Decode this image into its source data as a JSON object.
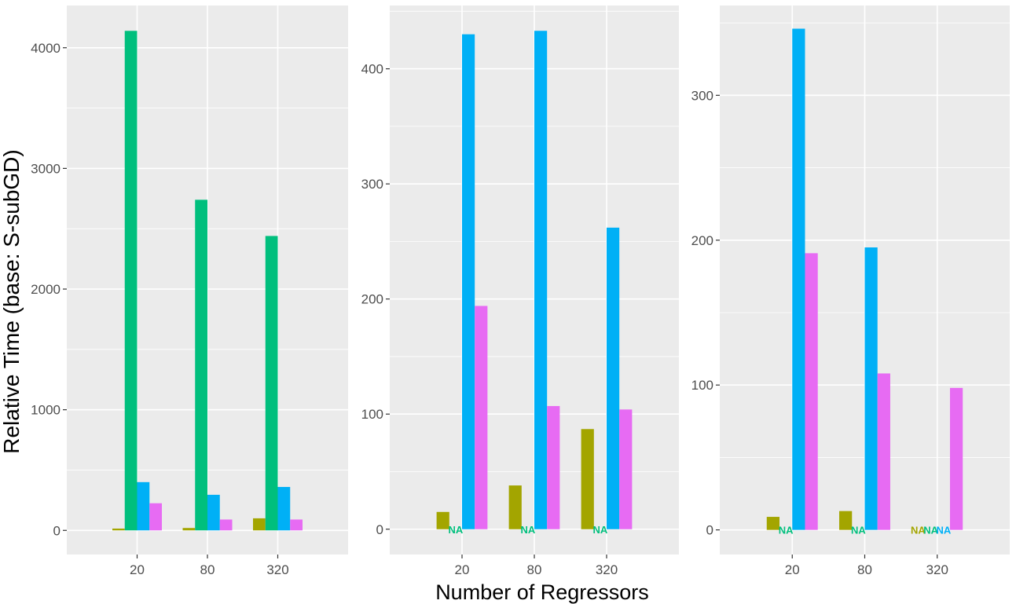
{
  "figure": {
    "ylabel": "Relative Time (base: S-subGD)",
    "xlabel": "Number of Regressors",
    "na_label": "NA"
  },
  "colors": {
    "series": [
      "#A3A500",
      "#00BF7D",
      "#00B0F6",
      "#E76BF3"
    ],
    "panel_bg": "#EBEBEB",
    "grid": "#FFFFFF",
    "tick_text": "#4D4D4D",
    "tick_mark": "#333333",
    "title_text": "#000000"
  },
  "chart_data": [
    {
      "type": "bar",
      "categories": [
        "20",
        "80",
        "320"
      ],
      "ylim": [
        -200,
        4350
      ],
      "yticks": [
        0,
        1000,
        2000,
        3000,
        4000
      ],
      "series": [
        {
          "values": [
            15,
            20,
            100
          ]
        },
        {
          "values": [
            4140,
            2740,
            2440
          ]
        },
        {
          "values": [
            400,
            295,
            360
          ]
        },
        {
          "values": [
            225,
            90,
            90
          ]
        }
      ]
    },
    {
      "type": "bar",
      "categories": [
        "20",
        "80",
        "320"
      ],
      "ylim": [
        -22,
        455
      ],
      "yticks": [
        0,
        100,
        200,
        300,
        400
      ],
      "series": [
        {
          "values": [
            15,
            38,
            87
          ]
        },
        {
          "values": [
            null,
            null,
            null
          ]
        },
        {
          "values": [
            430,
            433,
            262
          ]
        },
        {
          "values": [
            194,
            107,
            104
          ]
        }
      ]
    },
    {
      "type": "bar",
      "categories": [
        "20",
        "80",
        "320"
      ],
      "ylim": [
        -17,
        362
      ],
      "yticks": [
        0,
        100,
        200,
        300
      ],
      "series": [
        {
          "values": [
            9,
            13,
            null
          ]
        },
        {
          "values": [
            null,
            null,
            null
          ]
        },
        {
          "values": [
            346,
            195,
            null
          ]
        },
        {
          "values": [
            191,
            108,
            98
          ]
        }
      ]
    }
  ]
}
